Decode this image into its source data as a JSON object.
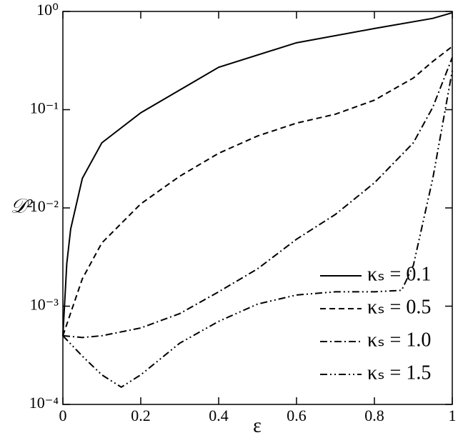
{
  "chart_data": {
    "type": "line",
    "xlabel": "ε",
    "ylabel": "𝒟²",
    "yscale": "log",
    "xlim": [
      0,
      1
    ],
    "xticks": [
      0,
      0.2,
      0.4,
      0.6,
      0.8,
      1
    ],
    "ylim": [
      0.0001,
      1
    ],
    "yticks": [
      {
        "value": 0.0001,
        "label": "10⁻⁴"
      },
      {
        "value": 0.001,
        "label": "10⁻³"
      },
      {
        "value": 0.01,
        "label": "10⁻²"
      },
      {
        "value": 0.1,
        "label": "10⁻¹"
      },
      {
        "value": 1,
        "label": "10⁰"
      }
    ],
    "legend": "lower right",
    "series": [
      {
        "name": "κₛ = 0.1",
        "color": "#000000",
        "x": [
          0,
          0.01,
          0.02,
          0.05,
          0.1,
          0.2,
          0.4,
          0.6,
          0.8,
          0.95,
          1
        ],
        "values": [
          0.0005,
          0.0027,
          0.0061,
          0.02,
          0.046,
          0.093,
          0.27,
          0.48,
          0.67,
          0.85,
          0.97
        ]
      },
      {
        "name": "κₛ = 0.5",
        "color": "#000000",
        "x": [
          0,
          0.05,
          0.1,
          0.2,
          0.3,
          0.4,
          0.5,
          0.6,
          0.7,
          0.8,
          0.9,
          0.95,
          1
        ],
        "values": [
          0.0005,
          0.0019,
          0.0044,
          0.011,
          0.021,
          0.036,
          0.054,
          0.073,
          0.09,
          0.125,
          0.21,
          0.31,
          0.44
        ]
      },
      {
        "name": "κₛ = 1.0",
        "color": "#000000",
        "x": [
          0,
          0.05,
          0.1,
          0.2,
          0.3,
          0.4,
          0.5,
          0.6,
          0.7,
          0.8,
          0.9,
          0.95,
          1
        ],
        "values": [
          0.0005,
          0.00048,
          0.0005,
          0.0006,
          0.00084,
          0.0014,
          0.0024,
          0.0048,
          0.0086,
          0.018,
          0.046,
          0.106,
          0.34
        ]
      },
      {
        "name": "κₛ = 1.5",
        "color": "#000000",
        "x": [
          0,
          0.05,
          0.1,
          0.15,
          0.2,
          0.3,
          0.4,
          0.5,
          0.6,
          0.7,
          0.8,
          0.87,
          0.9,
          0.95,
          1
        ],
        "values": [
          0.0005,
          0.00031,
          0.0002,
          0.00015,
          0.0002,
          0.00042,
          0.0007,
          0.00105,
          0.0013,
          0.0014,
          0.0014,
          0.00145,
          0.0026,
          0.02,
          0.25
        ]
      }
    ]
  }
}
